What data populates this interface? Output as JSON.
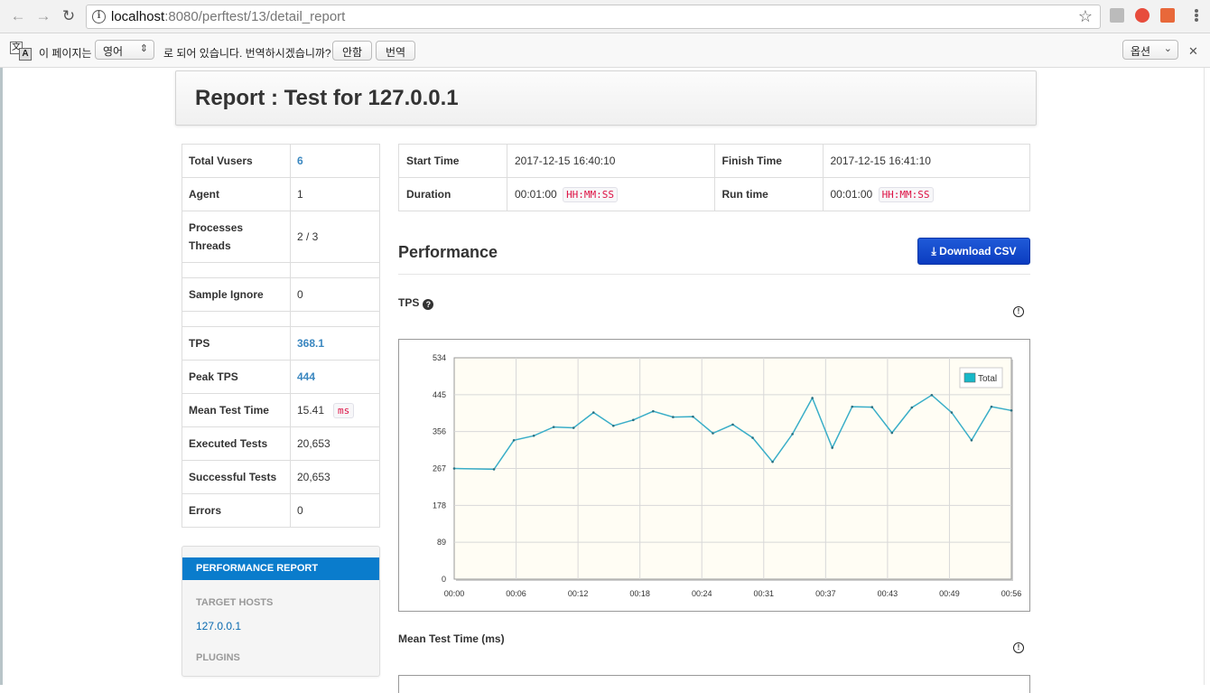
{
  "browser": {
    "url_host": "localhost",
    "url_rest": ":8080/perftest/13/detail_report",
    "translate_prefix": "이 페이지는",
    "translate_language": "영어",
    "translate_suffix": "로 되어 있습니다. 번역하시겠습니까?",
    "translate_no": "안함",
    "translate_yes": "번역",
    "translate_options": "옵션"
  },
  "header": {
    "title": "Report : Test for 127.0.0.1"
  },
  "summary": [
    {
      "label": "Total Vusers",
      "value": "6",
      "style": "blue"
    },
    {
      "label": "Agent",
      "value": "1"
    },
    {
      "label": "Processes\nThreads",
      "value": "2 / 3"
    },
    {
      "label": "",
      "value": ""
    },
    {
      "label": "Sample Ignore",
      "value": "0"
    },
    {
      "label": "",
      "value": ""
    },
    {
      "label": "TPS",
      "value": "368.1",
      "style": "blue"
    },
    {
      "label": "Peak TPS",
      "value": "444",
      "style": "blue"
    },
    {
      "label": "Mean Test Time",
      "value": "15.41",
      "badge": "ms"
    },
    {
      "label": "Executed Tests",
      "value": "20,653"
    },
    {
      "label": "Successful Tests",
      "value": "20,653"
    },
    {
      "label": "Errors",
      "value": "0"
    }
  ],
  "times": {
    "start_label": "Start Time",
    "start_value": "2017-12-15 16:40:10",
    "finish_label": "Finish Time",
    "finish_value": "2017-12-15 16:41:10",
    "duration_label": "Duration",
    "duration_value": "00:01:00",
    "runtime_label": "Run time",
    "runtime_value": "00:01:00",
    "format_badge": "HH:MM:SS"
  },
  "performance": {
    "title": "Performance",
    "download_label": "Download CSV",
    "tps_label": "TPS",
    "mean_label": "Mean Test Time (ms)"
  },
  "side_menu": {
    "active": "PERFORMANCE REPORT",
    "target_hosts_head": "TARGET HOSTS",
    "host": "127.0.0.1",
    "plugins_head": "PLUGINS"
  },
  "colors": {
    "line": "#3aaec8",
    "plot_bg": "#fffdf4",
    "accent": "#0a7ccc"
  },
  "chart_data": {
    "type": "line",
    "title": "TPS",
    "ylim": [
      0,
      534
    ],
    "yticks": [
      "0",
      "89",
      "178",
      "267",
      "356",
      "445",
      "534"
    ],
    "xticks": [
      "00:00",
      "00:06",
      "00:12",
      "00:18",
      "00:24",
      "00:31",
      "00:37",
      "00:43",
      "00:49",
      "00:56"
    ],
    "legend": "top-right",
    "series": [
      {
        "name": "Total",
        "x": [
          0,
          4,
          6,
          8,
          10,
          12,
          14,
          16,
          18,
          20,
          22,
          24,
          26,
          28,
          30,
          32,
          34,
          36,
          38,
          40,
          42,
          44,
          46,
          48,
          50,
          52,
          54,
          56
        ],
        "values": [
          267,
          265,
          335,
          346,
          367,
          365,
          402,
          370,
          384,
          405,
          391,
          392,
          352,
          373,
          341,
          283,
          350,
          437,
          317,
          416,
          415,
          353,
          414,
          444,
          402,
          335,
          416,
          407
        ]
      }
    ],
    "grid": true
  }
}
